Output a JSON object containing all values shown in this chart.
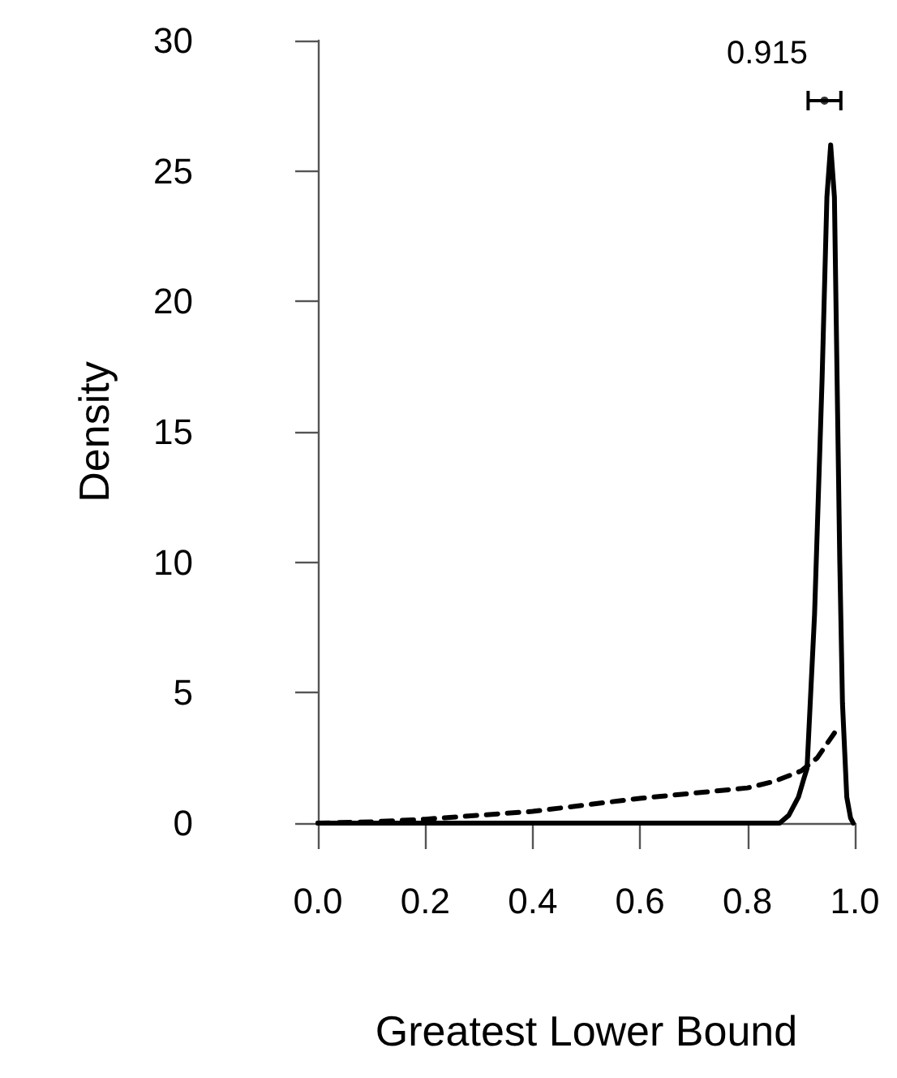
{
  "chart_data": {
    "type": "line",
    "xlabel": "Greatest Lower Bound",
    "ylabel": "Density",
    "xlim": [
      0,
      1
    ],
    "ylim": [
      0,
      30
    ],
    "xticks": [
      {
        "value": 0,
        "label": "0.0"
      },
      0.2,
      0.4,
      0.6,
      0.8,
      {
        "value": 1,
        "label": "1.0"
      }
    ],
    "yticks": [
      0,
      5,
      10,
      15,
      20,
      25,
      30
    ],
    "grid": false,
    "marker": "none",
    "series": [
      {
        "color": "#000000",
        "line_style": "solid",
        "x": [
          0,
          0.86,
          0.877,
          0.895,
          0.905,
          0.911,
          0.925,
          0.939,
          0.948,
          0.955,
          0.962,
          0.967,
          0.972,
          0.977,
          0.985,
          0.992,
          0.997
        ],
        "values": [
          0,
          0,
          0.3,
          1.0,
          1.7,
          2.1,
          8,
          17,
          24,
          26,
          24,
          17,
          10,
          4.6,
          1,
          0.2,
          0
        ]
      },
      {
        "color": "#000000",
        "line_style": "dashed",
        "x": [
          0,
          0.1,
          0.2,
          0.3,
          0.4,
          0.5,
          0.6,
          0.7,
          0.8,
          0.85,
          0.9,
          0.93,
          0.95,
          0.967
        ],
        "values": [
          0,
          0.05,
          0.15,
          0.3,
          0.45,
          0.7,
          0.95,
          1.15,
          1.35,
          1.6,
          2.0,
          2.5,
          3.1,
          3.6
        ]
      },
      {
        "type": "scatter",
        "color": "#000000",
        "marker": "circle",
        "x": [
          0.9435
        ],
        "values": [
          27.7
        ],
        "xerrors": [
          [
            0.913,
            0.974
          ]
        ]
      }
    ],
    "annotations": [
      "0.915"
    ]
  }
}
